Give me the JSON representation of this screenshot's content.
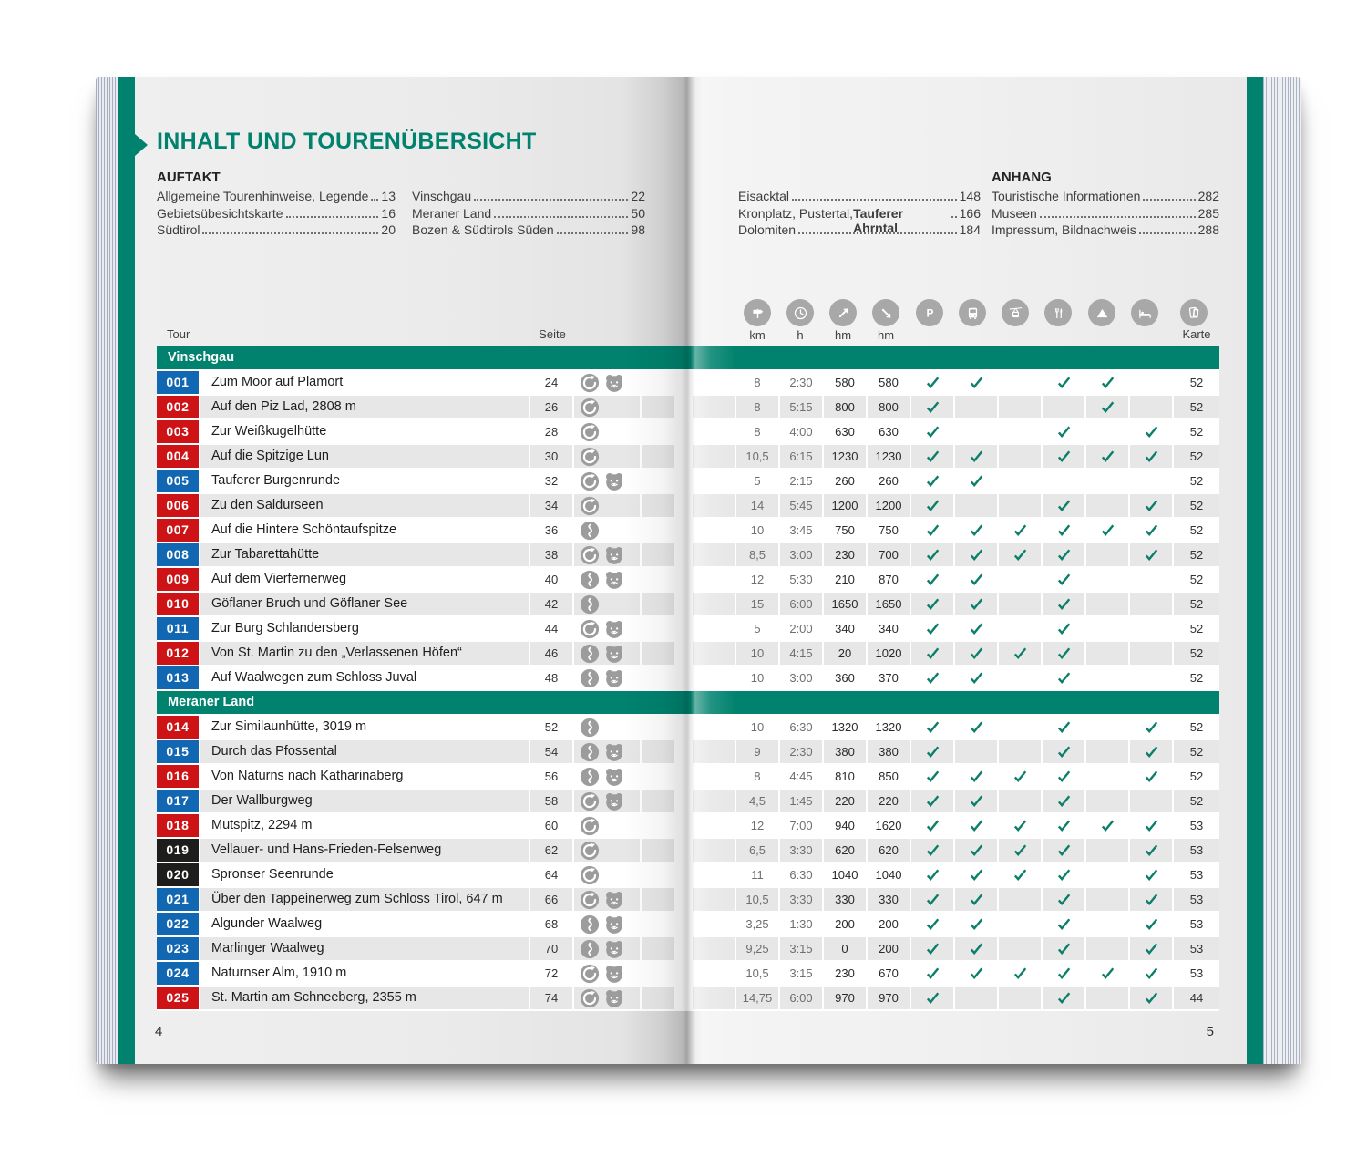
{
  "page": {
    "title": "INHALT UND TOURENÜBERSICHT",
    "left_page_number": "4",
    "right_page_number": "5"
  },
  "colors": {
    "teal": "#00826e",
    "red": "#cd1316",
    "blue": "#1267b2",
    "black": "#1d1d1b",
    "check": "#0c7f6a",
    "header_icon_gray": "#a8a8a8",
    "difficulty_icon_gray": "#9c9c9c",
    "stripe_gray": "#e7e7e7"
  },
  "toc": {
    "columns": [
      {
        "heading": "AUFTAKT",
        "entries": [
          {
            "label": "Allgemeine Tourenhinweise, Legende",
            "page": "13"
          },
          {
            "label": "Gebietsübesichtskarte",
            "page": "16"
          },
          {
            "label": "Südtirol",
            "page": "20"
          }
        ]
      },
      {
        "heading": "",
        "entries": [
          {
            "label": "Vinschgau",
            "page": "22"
          },
          {
            "label": "Meraner Land",
            "page": "50"
          },
          {
            "label": "Bozen & Südtirols Süden",
            "page": "98"
          }
        ]
      },
      {
        "heading": "",
        "entries": [
          {
            "label": "Eisacktal",
            "page": "148"
          },
          {
            "label": "Kronplatz, Pustertal, ",
            "label_bold": "Tauferer Ahrntal",
            "page": "166"
          },
          {
            "label": "Dolomiten",
            "page": "184"
          }
        ]
      },
      {
        "heading": "ANHANG",
        "entries": [
          {
            "label": "Touristische Informationen",
            "page": "282"
          },
          {
            "label": "Museen",
            "page": "285"
          },
          {
            "label": "Impressum, Bildnachweis",
            "page": "288"
          }
        ]
      }
    ]
  },
  "table": {
    "tour_label": "Tour",
    "seite_label": "Seite",
    "stat_columns": [
      {
        "icon": "signpost-icon",
        "label": "km"
      },
      {
        "icon": "clock-icon",
        "label": "h"
      },
      {
        "icon": "ascent-icon",
        "label": "hm"
      },
      {
        "icon": "descent-icon",
        "label": "hm"
      }
    ],
    "feature_columns": [
      {
        "icon": "parking-icon"
      },
      {
        "icon": "bus-icon"
      },
      {
        "icon": "cablecar-icon"
      },
      {
        "icon": "restaurant-icon"
      },
      {
        "icon": "mountain-icon"
      },
      {
        "icon": "bed-icon"
      }
    ],
    "map_column": {
      "icon": "map-icon",
      "label": "Karte"
    },
    "sections": [
      {
        "name": "Vinschgau",
        "tours": [
          {
            "nr": "001",
            "difficulty": "blue",
            "name": "Zum Moor auf Plamort",
            "seite": "24",
            "icons": [
              "loop-icon",
              "bear-icon"
            ],
            "km": "8",
            "h": "2:30",
            "up": "580",
            "down": "580",
            "features": [
              1,
              1,
              0,
              1,
              1,
              0
            ],
            "karte": "52"
          },
          {
            "nr": "002",
            "difficulty": "red",
            "name": "Auf den Piz Lad, 2808 m",
            "seite": "26",
            "icons": [
              "loop-icon"
            ],
            "km": "8",
            "h": "5:15",
            "up": "800",
            "down": "800",
            "features": [
              1,
              0,
              0,
              0,
              1,
              0
            ],
            "karte": "52"
          },
          {
            "nr": "003",
            "difficulty": "red",
            "name": "Zur Weißkugelhütte",
            "seite": "28",
            "icons": [
              "loop-icon"
            ],
            "km": "8",
            "h": "4:00",
            "up": "630",
            "down": "630",
            "features": [
              1,
              0,
              0,
              1,
              0,
              1
            ],
            "karte": "52"
          },
          {
            "nr": "004",
            "difficulty": "red",
            "name": "Auf die Spitzige Lun",
            "seite": "30",
            "icons": [
              "loop-icon"
            ],
            "km": "10,5",
            "h": "6:15",
            "up": "1230",
            "down": "1230",
            "features": [
              1,
              1,
              0,
              1,
              1,
              1
            ],
            "karte": "52"
          },
          {
            "nr": "005",
            "difficulty": "blue",
            "name": "Tauferer Burgenrunde",
            "seite": "32",
            "icons": [
              "loop-icon",
              "bear-icon"
            ],
            "km": "5",
            "h": "2:15",
            "up": "260",
            "down": "260",
            "features": [
              1,
              1,
              0,
              0,
              0,
              0
            ],
            "karte": "52"
          },
          {
            "nr": "006",
            "difficulty": "red",
            "name": "Zu den Saldurseen",
            "seite": "34",
            "icons": [
              "loop-icon"
            ],
            "km": "14",
            "h": "5:45",
            "up": "1200",
            "down": "1200",
            "features": [
              1,
              0,
              0,
              1,
              0,
              1
            ],
            "karte": "52"
          },
          {
            "nr": "007",
            "difficulty": "red",
            "name": "Auf die Hintere Schöntaufspitze",
            "seite": "36",
            "icons": [
              "route-icon"
            ],
            "km": "10",
            "h": "3:45",
            "up": "750",
            "down": "750",
            "features": [
              1,
              1,
              1,
              1,
              1,
              1
            ],
            "karte": "52"
          },
          {
            "nr": "008",
            "difficulty": "blue",
            "name": "Zur Tabarettahütte",
            "seite": "38",
            "icons": [
              "loop-icon",
              "bear-icon"
            ],
            "km": "8,5",
            "h": "3:00",
            "up": "230",
            "down": "700",
            "features": [
              1,
              1,
              1,
              1,
              0,
              1
            ],
            "karte": "52"
          },
          {
            "nr": "009",
            "difficulty": "red",
            "name": "Auf dem Vierfernerweg",
            "seite": "40",
            "icons": [
              "route-icon",
              "bear-icon"
            ],
            "km": "12",
            "h": "5:30",
            "up": "210",
            "down": "870",
            "features": [
              1,
              1,
              0,
              1,
              0,
              0
            ],
            "karte": "52"
          },
          {
            "nr": "010",
            "difficulty": "red",
            "name": "Göflaner Bruch und Göflaner See",
            "seite": "42",
            "icons": [
              "route-icon"
            ],
            "km": "15",
            "h": "6:00",
            "up": "1650",
            "down": "1650",
            "features": [
              1,
              1,
              0,
              1,
              0,
              0
            ],
            "karte": "52"
          },
          {
            "nr": "011",
            "difficulty": "blue",
            "name": "Zur Burg Schlandersberg",
            "seite": "44",
            "icons": [
              "loop-icon",
              "bear-icon"
            ],
            "km": "5",
            "h": "2:00",
            "up": "340",
            "down": "340",
            "features": [
              1,
              1,
              0,
              1,
              0,
              0
            ],
            "karte": "52"
          },
          {
            "nr": "012",
            "difficulty": "red",
            "name": "Von St. Martin zu den „Verlassenen Höfen“",
            "seite": "46",
            "icons": [
              "route-icon",
              "bear-icon"
            ],
            "km": "10",
            "h": "4:15",
            "up": "20",
            "down": "1020",
            "features": [
              1,
              1,
              1,
              1,
              0,
              0
            ],
            "karte": "52"
          },
          {
            "nr": "013",
            "difficulty": "blue",
            "name": "Auf Waalwegen zum Schloss Juval",
            "seite": "48",
            "icons": [
              "route-icon",
              "bear-icon"
            ],
            "km": "10",
            "h": "3:00",
            "up": "360",
            "down": "370",
            "features": [
              1,
              1,
              0,
              1,
              0,
              0
            ],
            "karte": "52"
          }
        ]
      },
      {
        "name": "Meraner Land",
        "tours": [
          {
            "nr": "014",
            "difficulty": "red",
            "name": "Zur Similaunhütte, 3019 m",
            "seite": "52",
            "icons": [
              "route-icon"
            ],
            "km": "10",
            "h": "6:30",
            "up": "1320",
            "down": "1320",
            "features": [
              1,
              1,
              0,
              1,
              0,
              1
            ],
            "karte": "52"
          },
          {
            "nr": "015",
            "difficulty": "blue",
            "name": "Durch das Pfossental",
            "seite": "54",
            "icons": [
              "route-icon",
              "bear-icon"
            ],
            "km": "9",
            "h": "2:30",
            "up": "380",
            "down": "380",
            "features": [
              1,
              0,
              0,
              1,
              0,
              1
            ],
            "karte": "52"
          },
          {
            "nr": "016",
            "difficulty": "red",
            "name": "Von Naturns nach Katharinaberg",
            "seite": "56",
            "icons": [
              "route-icon",
              "bear-icon"
            ],
            "km": "8",
            "h": "4:45",
            "up": "810",
            "down": "850",
            "features": [
              1,
              1,
              1,
              1,
              0,
              1
            ],
            "karte": "52"
          },
          {
            "nr": "017",
            "difficulty": "blue",
            "name": "Der Wallburgweg",
            "seite": "58",
            "icons": [
              "loop-icon",
              "bear-icon"
            ],
            "km": "4,5",
            "h": "1:45",
            "up": "220",
            "down": "220",
            "features": [
              1,
              1,
              0,
              1,
              0,
              0
            ],
            "karte": "52"
          },
          {
            "nr": "018",
            "difficulty": "red",
            "name": "Mutspitz, 2294 m",
            "seite": "60",
            "icons": [
              "loop-icon"
            ],
            "km": "12",
            "h": "7:00",
            "up": "940",
            "down": "1620",
            "features": [
              1,
              1,
              1,
              1,
              1,
              1
            ],
            "karte": "53"
          },
          {
            "nr": "019",
            "difficulty": "black",
            "name": "Vellauer- und Hans-Frieden-Felsenweg",
            "seite": "62",
            "icons": [
              "loop-icon"
            ],
            "km": "6,5",
            "h": "3:30",
            "up": "620",
            "down": "620",
            "features": [
              1,
              1,
              1,
              1,
              0,
              1
            ],
            "karte": "53"
          },
          {
            "nr": "020",
            "difficulty": "black",
            "name": "Spronser Seenrunde",
            "seite": "64",
            "icons": [
              "loop-icon"
            ],
            "km": "11",
            "h": "6:30",
            "up": "1040",
            "down": "1040",
            "features": [
              1,
              1,
              1,
              1,
              0,
              1
            ],
            "karte": "53"
          },
          {
            "nr": "021",
            "difficulty": "blue",
            "name": "Über den Tappeinerweg zum Schloss Tirol, 647 m",
            "seite": "66",
            "icons": [
              "loop-icon",
              "bear-icon"
            ],
            "km": "10,5",
            "h": "3:30",
            "up": "330",
            "down": "330",
            "features": [
              1,
              1,
              0,
              1,
              0,
              1
            ],
            "karte": "53"
          },
          {
            "nr": "022",
            "difficulty": "blue",
            "name": "Algunder Waalweg",
            "seite": "68",
            "icons": [
              "route-icon",
              "bear-icon"
            ],
            "km": "3,25",
            "h": "1:30",
            "up": "200",
            "down": "200",
            "features": [
              1,
              1,
              0,
              1,
              0,
              1
            ],
            "karte": "53"
          },
          {
            "nr": "023",
            "difficulty": "blue",
            "name": "Marlinger Waalweg",
            "seite": "70",
            "icons": [
              "route-icon",
              "bear-icon"
            ],
            "km": "9,25",
            "h": "3:15",
            "up": "0",
            "down": "200",
            "features": [
              1,
              1,
              0,
              1,
              0,
              1
            ],
            "karte": "53"
          },
          {
            "nr": "024",
            "difficulty": "blue",
            "name": "Naturnser Alm, 1910 m",
            "seite": "72",
            "icons": [
              "loop-icon",
              "bear-icon"
            ],
            "km": "10,5",
            "h": "3:15",
            "up": "230",
            "down": "670",
            "features": [
              1,
              1,
              1,
              1,
              1,
              1
            ],
            "karte": "53"
          },
          {
            "nr": "025",
            "difficulty": "red",
            "name": "St. Martin am Schneeberg, 2355 m",
            "seite": "74",
            "icons": [
              "loop-icon",
              "bear-icon"
            ],
            "km": "14,75",
            "h": "6:00",
            "up": "970",
            "down": "970",
            "features": [
              1,
              0,
              0,
              1,
              0,
              1
            ],
            "karte": "44"
          }
        ]
      }
    ]
  }
}
